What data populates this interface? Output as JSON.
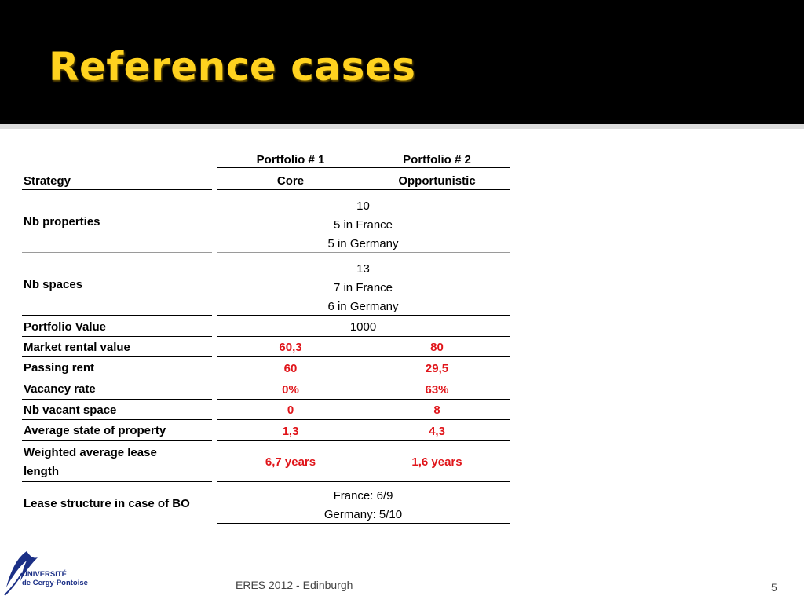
{
  "slide": {
    "title": "Reference cases",
    "footer": "ERES 2012 - Edinburgh",
    "page_number": "5"
  },
  "logo": {
    "line1": "UNIVERSITÉ",
    "line2": "de Cergy-Pontoise"
  },
  "table": {
    "col1_header": "Portfolio # 1",
    "col2_header": "Portfolio # 2",
    "rows": {
      "strategy": {
        "label": "Strategy",
        "v1": "Core",
        "v2": "Opportunistic"
      },
      "nb_properties": {
        "label": "Nb properties",
        "lines": [
          "10",
          "5 in France",
          "5 in Germany"
        ]
      },
      "nb_spaces": {
        "label": "Nb spaces",
        "lines": [
          "13",
          "7 in France",
          "6 in Germany"
        ]
      },
      "portfolio_value": {
        "label": "Portfolio Value",
        "value": "1000"
      },
      "market_rental_value": {
        "label": "Market rental value",
        "v1": "60,3",
        "v2": "80"
      },
      "passing_rent": {
        "label": "Passing rent",
        "v1": "60",
        "v2": "29,5"
      },
      "vacancy_rate": {
        "label": "Vacancy rate",
        "v1": "0%",
        "v2": "63%"
      },
      "nb_vacant_space": {
        "label": "Nb vacant space",
        "v1": "0",
        "v2": "8"
      },
      "average_state": {
        "label": "Average state of property",
        "v1": "1,3",
        "v2": "4,3"
      },
      "wale": {
        "label_line1": "Weighted average lease",
        "label_line2": "length",
        "v1": "6,7 years",
        "v2": "1,6 years"
      },
      "lease_structure": {
        "label": "Lease structure in case of BO",
        "lines": [
          "France: 6/9",
          "Germany: 5/10"
        ]
      }
    }
  },
  "colors": {
    "title": "#ffd21f",
    "header_bg": "#000000",
    "highlight": "#e0151a",
    "logo": "#1b2f86"
  }
}
